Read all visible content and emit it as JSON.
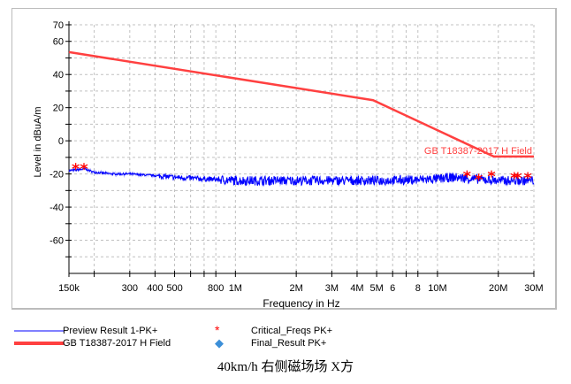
{
  "chart_data": {
    "type": "line",
    "xlabel": "Frequency in Hz",
    "ylabel": "Level in dBuA/m",
    "xscale": "log",
    "xlim": [
      150000,
      30000000
    ],
    "ylim": [
      -80,
      70
    ],
    "grid": true,
    "yticks": [
      70,
      60,
      40,
      20,
      0,
      -20,
      -40,
      -60
    ],
    "xticks": [
      150000,
      200000,
      300000,
      400000,
      500000,
      600000,
      700000,
      800000,
      1000000,
      2000000,
      3000000,
      4000000,
      5000000,
      6000000,
      7000000,
      8000000,
      10000000,
      20000000,
      30000000
    ],
    "xtick_labels": [
      [
        "150k",
        150000
      ],
      [
        "300",
        300000
      ],
      [
        "400",
        400000
      ],
      [
        "500",
        500000
      ],
      [
        "800",
        800000
      ],
      [
        "1M",
        1000000
      ],
      [
        "2M",
        2000000
      ],
      [
        "3M",
        3000000
      ],
      [
        "4M",
        4000000
      ],
      [
        "5M",
        5000000
      ],
      [
        "6",
        6000000
      ],
      [
        "8",
        8000000
      ],
      [
        "10M",
        10000000
      ],
      [
        "20M",
        20000000
      ],
      [
        "30M",
        30000000
      ]
    ],
    "series": [
      {
        "name": "Preview Result 1-PK+",
        "color": "#0000ff",
        "x": [
          150000,
          180000,
          200000,
          250000,
          300000,
          400000,
          500000,
          700000,
          1000000,
          2000000,
          5000000,
          8000000,
          10000000,
          12000000,
          15000000,
          20000000,
          30000000
        ],
        "y": [
          -18,
          -17,
          -19,
          -20,
          -20,
          -21,
          -22,
          -23,
          -24,
          -24,
          -24,
          -23.5,
          -23,
          -22,
          -23,
          -24,
          -24
        ]
      },
      {
        "name": "GB T18387-2017 H Field",
        "color": "#ff4040",
        "x": [
          150000,
          4800000,
          19000000,
          30000000
        ],
        "y": [
          53.5,
          24.5,
          -9.5,
          -9.5
        ],
        "annotation": "GB T18387-2017 H Field"
      },
      {
        "name": "Critical_Freqs PK+",
        "color": "#ff0000",
        "marker": "asterisk",
        "x": [
          162000,
          178000,
          14000000,
          16000000,
          18500000,
          24000000,
          25000000,
          28000000
        ],
        "y": [
          -15.5,
          -15.5,
          -20,
          -22,
          -20,
          -21,
          -21,
          -21
        ]
      },
      {
        "name": "Final_Result PK+",
        "color": "#3c8fd8",
        "marker": "diamond",
        "x": [],
        "y": []
      }
    ],
    "title": "40km/h 右侧磁场场 X方"
  }
}
